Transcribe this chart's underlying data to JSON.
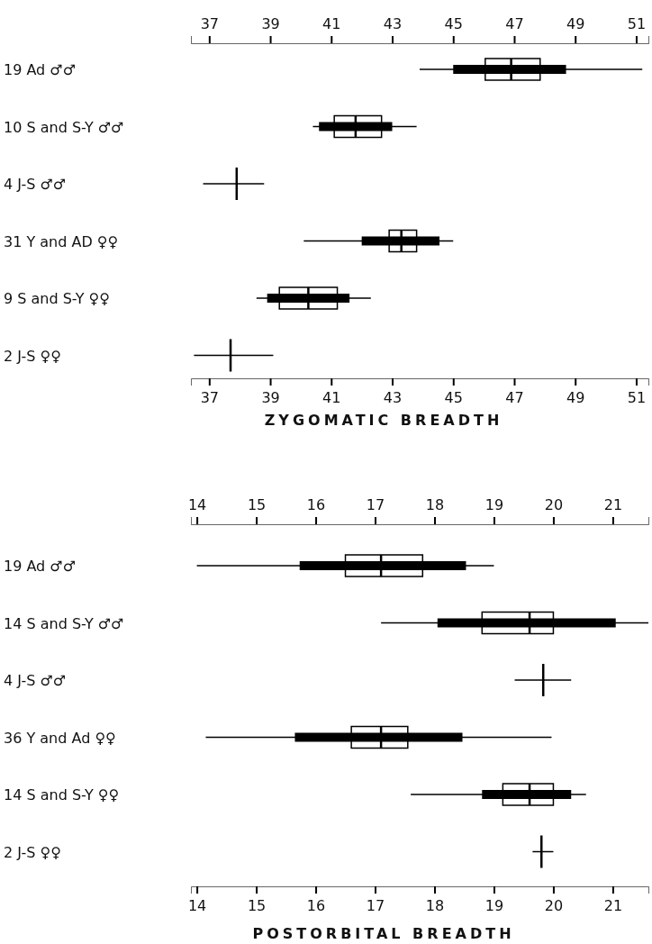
{
  "chart_data": [
    {
      "type": "box",
      "orientation": "horizontal",
      "xlabel": "ZYGOMATIC BREADTH",
      "categories": [
        "19 Ad ♂♂",
        "10 S and S-Y ♂♂",
        "4 J-S ♂♂",
        "31 Y and AD ♀♀",
        "9 S and S-Y ♀♀",
        "2 J-S ♀♀"
      ],
      "xlim": [
        36.4,
        51.4
      ],
      "xticks": [
        37,
        39,
        41,
        43,
        45,
        47,
        49,
        51
      ],
      "x2lim": [
        36.4,
        51.4
      ],
      "x2ticks": [
        37,
        39,
        41,
        43,
        45,
        47,
        49,
        51
      ],
      "series": [
        {
          "type": "box",
          "color": "#000000",
          "boxes": [
            {
              "low": 43.9,
              "q1": 46.05,
              "median": 46.9,
              "q3": 47.85,
              "high": 51.2
            },
            {
              "low": 40.4,
              "q1": 41.1,
              "median": 41.8,
              "q3": 42.65,
              "high": 43.8
            },
            {
              "low": 36.8,
              "q1": 37.9,
              "median": 37.9,
              "q3": 37.9,
              "high": 38.8
            },
            {
              "low": 40.1,
              "q1": 42.9,
              "median": 43.3,
              "q3": 43.8,
              "high": 45.0
            },
            {
              "low": 38.55,
              "q1": 39.3,
              "median": 40.25,
              "q3": 41.2,
              "high": 42.3
            },
            {
              "low": 36.5,
              "q1": 37.7,
              "median": 37.7,
              "q3": 37.7,
              "high": 39.1
            }
          ]
        },
        {
          "type": "bar",
          "color": "#000000",
          "base": [
            45.0,
            40.6,
            null,
            42.0,
            38.9,
            null
          ],
          "values": [
            3.7,
            2.4,
            null,
            2.55,
            2.7,
            null
          ]
        }
      ]
    },
    {
      "type": "box",
      "orientation": "horizontal",
      "xlabel": "POSTORBITAL BREADTH",
      "categories": [
        "19 Ad ♂♂",
        "14 S and S-Y ♂♂",
        "4 J-S ♂♂",
        "36 Y and Ad ♀♀",
        "14 S and S-Y ♀♀",
        "2 J-S ♀♀"
      ],
      "xlim": [
        13.9,
        21.6
      ],
      "xticks": [
        14,
        15,
        16,
        17,
        18,
        19,
        20,
        21
      ],
      "x2lim": [
        13.9,
        21.6
      ],
      "x2ticks": [
        14,
        15,
        16,
        17,
        18,
        19,
        20,
        21
      ],
      "series": [
        {
          "type": "box",
          "color": "#000000",
          "boxes": [
            {
              "low": 14.0,
              "q1": 16.5,
              "median": 17.1,
              "q3": 17.8,
              "high": 19.0
            },
            {
              "low": 17.1,
              "q1": 18.8,
              "median": 19.6,
              "q3": 20.0,
              "high": 21.6
            },
            {
              "low": 19.35,
              "q1": 19.83,
              "median": 19.83,
              "q3": 19.83,
              "high": 20.3
            },
            {
              "low": 14.15,
              "q1": 16.6,
              "median": 17.1,
              "q3": 17.55,
              "high": 19.97
            },
            {
              "low": 17.6,
              "q1": 19.15,
              "median": 19.6,
              "q3": 20.0,
              "high": 20.55
            },
            {
              "low": 19.65,
              "q1": 19.8,
              "median": 19.8,
              "q3": 19.8,
              "high": 20.0
            }
          ]
        },
        {
          "type": "bar",
          "color": "#000000",
          "base": [
            15.73,
            18.05,
            null,
            15.65,
            18.8,
            null
          ],
          "values": [
            2.8,
            3.0,
            null,
            2.82,
            1.5,
            null
          ]
        }
      ]
    }
  ]
}
